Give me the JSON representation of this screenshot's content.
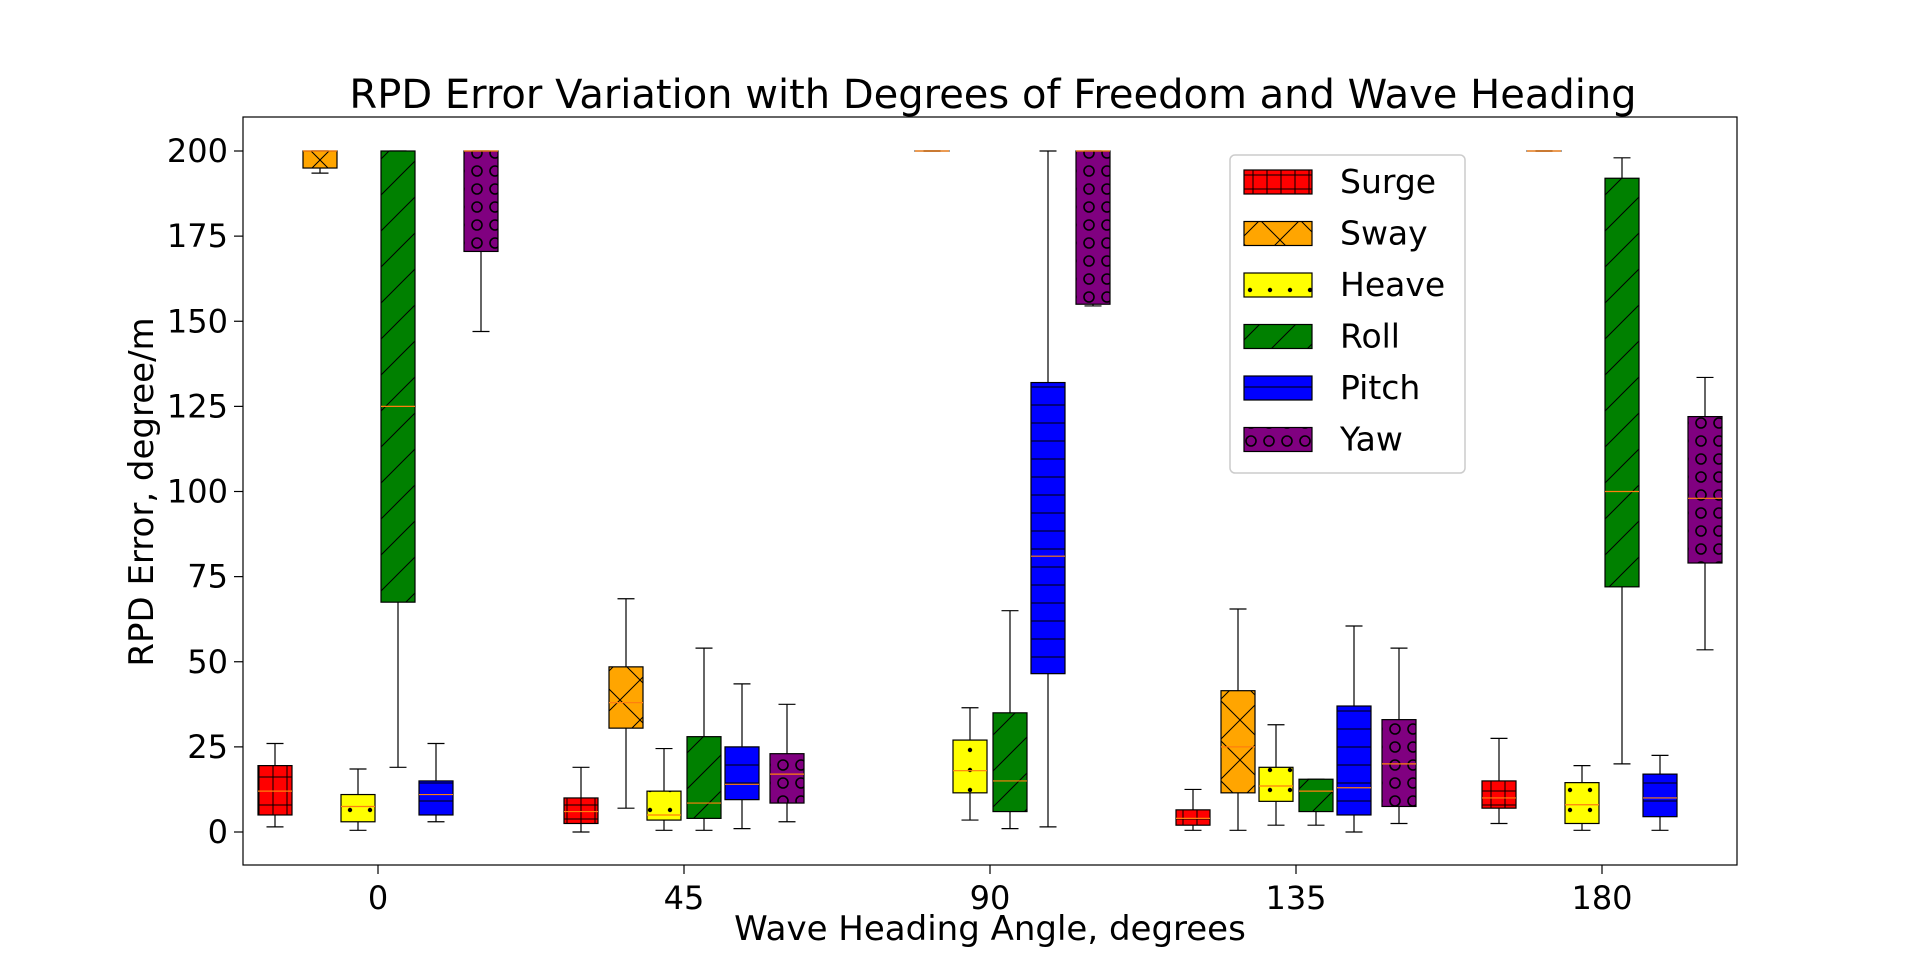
{
  "chart_data": {
    "type": "box",
    "title": "RPD Error Variation with Degrees of Freedom and Wave Heading",
    "xlabel": "Wave Heading Angle, degrees",
    "ylabel": "RPD Error, degree/m",
    "categories": [
      "0",
      "45",
      "90",
      "135",
      "180"
    ],
    "ylim": [
      -10,
      210
    ],
    "yticks": [
      0,
      25,
      50,
      75,
      100,
      125,
      150,
      175,
      200
    ],
    "grid": false,
    "legend_position": "upper-right",
    "series": [
      {
        "name": "Surge",
        "color": "#ff0000",
        "hatch": "grid",
        "boxes": [
          {
            "whislo": 1.5,
            "q1": 5,
            "med": 12,
            "q3": 19.5,
            "whishi": 26
          },
          {
            "whislo": 0,
            "q1": 2.5,
            "med": 6,
            "q3": 10,
            "whishi": 19
          },
          null,
          {
            "whislo": 0.5,
            "q1": 2,
            "med": 4,
            "q3": 6.5,
            "whishi": 12.5
          },
          {
            "whislo": 2.5,
            "q1": 7,
            "med": 10,
            "q3": 15,
            "whishi": 27.5
          }
        ]
      },
      {
        "name": "Sway",
        "color": "#ffa500",
        "hatch": "cross",
        "boxes": [
          {
            "whislo": 193.5,
            "q1": 195,
            "med": 200,
            "q3": 200,
            "whishi": 200
          },
          {
            "whislo": 7,
            "q1": 30.5,
            "med": 38,
            "q3": 48.5,
            "whishi": 68.5
          },
          {
            "whislo": 200,
            "q1": 200,
            "med": 200,
            "q3": 200,
            "whishi": 200
          },
          {
            "whislo": 0.5,
            "q1": 11.5,
            "med": 25,
            "q3": 41.5,
            "whishi": 65.5
          },
          {
            "whislo": 200,
            "q1": 200,
            "med": 200,
            "q3": 200,
            "whishi": 200
          }
        ]
      },
      {
        "name": "Heave",
        "color": "#ffff00",
        "hatch": "dots",
        "boxes": [
          {
            "whislo": 0.5,
            "q1": 3,
            "med": 7.5,
            "q3": 11,
            "whishi": 18.5
          },
          {
            "whislo": 0.5,
            "q1": 3.5,
            "med": 5,
            "q3": 12,
            "whishi": 24.5
          },
          {
            "whislo": 3.5,
            "q1": 11.5,
            "med": 18,
            "q3": 27,
            "whishi": 36.5
          },
          {
            "whislo": 2,
            "q1": 9,
            "med": 13.5,
            "q3": 19,
            "whishi": 31.5
          },
          {
            "whislo": 0.5,
            "q1": 2.5,
            "med": 8,
            "q3": 14.5,
            "whishi": 19.5
          }
        ]
      },
      {
        "name": "Roll",
        "color": "#008000",
        "hatch": "diagonal",
        "boxes": [
          {
            "whislo": 19,
            "q1": 67.5,
            "med": 125,
            "q3": 200,
            "whishi": 200
          },
          {
            "whislo": 0.5,
            "q1": 4,
            "med": 8.5,
            "q3": 28,
            "whishi": 54
          },
          {
            "whislo": 1,
            "q1": 6,
            "med": 15,
            "q3": 35,
            "whishi": 65
          },
          {
            "whislo": 2,
            "q1": 6,
            "med": 12,
            "q3": 15.5,
            "whishi": 15.5
          },
          {
            "whislo": 20,
            "q1": 72,
            "med": 100,
            "q3": 192,
            "whishi": 198
          }
        ]
      },
      {
        "name": "Pitch",
        "color": "#0000ff",
        "hatch": "horizontal",
        "boxes": [
          {
            "whislo": 3,
            "q1": 5,
            "med": 11,
            "q3": 15,
            "whishi": 26
          },
          {
            "whislo": 1,
            "q1": 9.5,
            "med": 14,
            "q3": 25,
            "whishi": 43.5
          },
          {
            "whislo": 1.5,
            "q1": 46.5,
            "med": 81,
            "q3": 132,
            "whishi": 200
          },
          {
            "whislo": 0,
            "q1": 5,
            "med": 13,
            "q3": 37,
            "whishi": 60.5
          },
          {
            "whislo": 0.5,
            "q1": 4.5,
            "med": 10,
            "q3": 17,
            "whishi": 22.5
          }
        ]
      },
      {
        "name": "Yaw",
        "color": "#800080",
        "hatch": "circles",
        "boxes": [
          {
            "whislo": 147,
            "q1": 170.5,
            "med": 200,
            "q3": 200,
            "whishi": 200
          },
          {
            "whislo": 3,
            "q1": 8.5,
            "med": 17,
            "q3": 23,
            "whishi": 37.5
          },
          {
            "whislo": 154.5,
            "q1": 155,
            "med": 200,
            "q3": 200,
            "whishi": 200
          },
          {
            "whislo": 2.5,
            "q1": 7.5,
            "med": 20,
            "q3": 33,
            "whishi": 54
          },
          {
            "whislo": 53.5,
            "q1": 79,
            "med": 98,
            "q3": 122,
            "whishi": 133.5
          }
        ]
      }
    ]
  }
}
